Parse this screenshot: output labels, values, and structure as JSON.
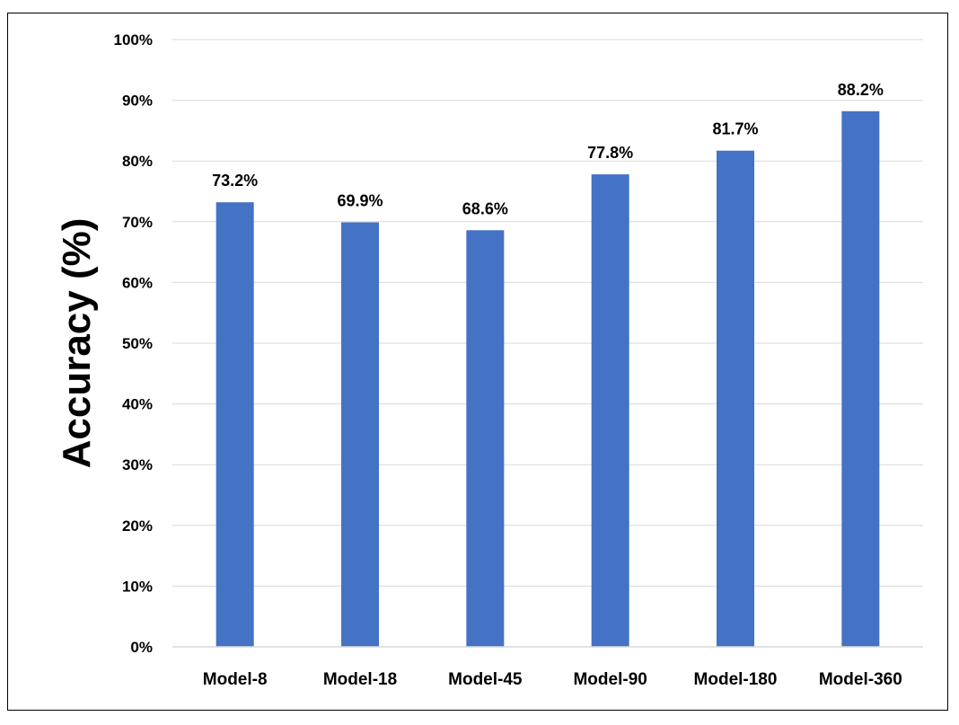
{
  "chart_data": {
    "type": "bar",
    "categories": [
      "Model-8",
      "Model-18",
      "Model-45",
      "Model-90",
      "Model-180",
      "Model-360"
    ],
    "values": [
      73.2,
      69.9,
      68.6,
      77.8,
      81.7,
      88.2
    ],
    "value_labels": [
      "73.2%",
      "69.9%",
      "68.6%",
      "77.8%",
      "81.7%",
      "88.2%"
    ],
    "title": "",
    "xlabel": "",
    "ylabel": "Accuracy (%)",
    "ylim": [
      0,
      100
    ],
    "yticks": [
      0,
      10,
      20,
      30,
      40,
      50,
      60,
      70,
      80,
      90,
      100
    ],
    "ytick_labels": [
      "0%",
      "10%",
      "20%",
      "30%",
      "40%",
      "50%",
      "60%",
      "70%",
      "80%",
      "90%",
      "100%"
    ],
    "grid": true,
    "legend": "none",
    "bar_color": "#4472C4",
    "grid_color": "#D9D9D9"
  }
}
